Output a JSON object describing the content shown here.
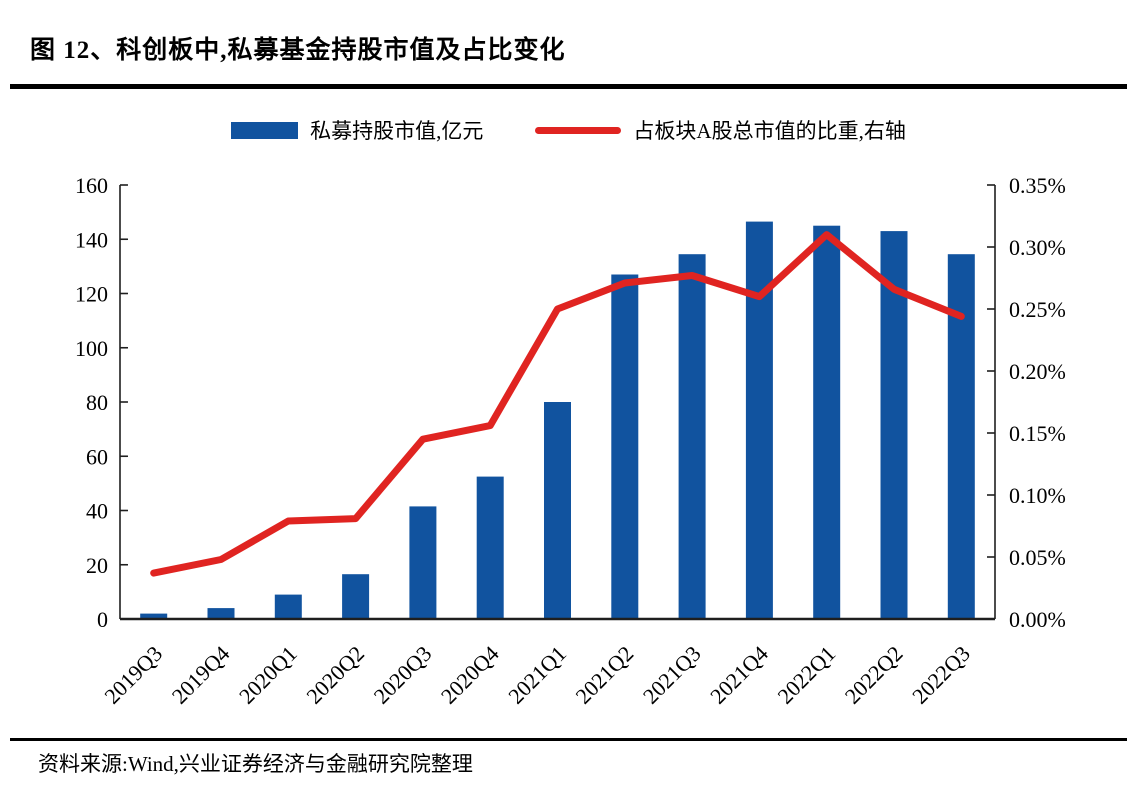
{
  "title": "图 12、科创板中,私募基金持股市值及占比变化",
  "legend": {
    "bars": "私募持股市值,亿元",
    "line": "占板块A股总市值的比重,右轴"
  },
  "source": "资料来源:Wind,兴业证券经济与金融研究院整理",
  "colors": {
    "bar": "#11539f",
    "line": "#e02421",
    "axis": "#1f1f1f",
    "text": "#000000"
  },
  "chart_data": {
    "type": "bar",
    "subtype": "bar+line dual-axis combo",
    "title": "图 12、科创板中,私募基金持股市值及占比变化",
    "categories": [
      "2019Q3",
      "2019Q4",
      "2020Q1",
      "2020Q2",
      "2020Q3",
      "2020Q4",
      "2021Q1",
      "2021Q2",
      "2021Q3",
      "2021Q4",
      "2022Q1",
      "2022Q2",
      "2022Q3"
    ],
    "series": [
      {
        "name": "私募持股市值,亿元",
        "type": "bar",
        "axis": "left",
        "values": [
          2,
          4,
          9,
          16.5,
          41.5,
          52.5,
          80,
          127,
          134.5,
          146.5,
          145,
          143,
          134.5
        ]
      },
      {
        "name": "占板块A股总市值的比重,右轴",
        "type": "line",
        "axis": "right",
        "unit": "%",
        "values": [
          0.037,
          0.048,
          0.079,
          0.081,
          0.145,
          0.156,
          0.25,
          0.271,
          0.277,
          0.26,
          0.31,
          0.266,
          0.244
        ]
      }
    ],
    "left_axis": {
      "min": 0,
      "max": 160,
      "step": 20,
      "tick_labels": [
        "0",
        "20",
        "40",
        "60",
        "80",
        "100",
        "120",
        "140",
        "160"
      ]
    },
    "right_axis": {
      "min": 0,
      "max": 0.35,
      "step": 0.05,
      "tick_labels": [
        "0.00%",
        "0.05%",
        "0.10%",
        "0.15%",
        "0.20%",
        "0.25%",
        "0.30%",
        "0.35%"
      ]
    },
    "grid": false,
    "legend_position": "top",
    "x_tick_rotation": -45
  }
}
